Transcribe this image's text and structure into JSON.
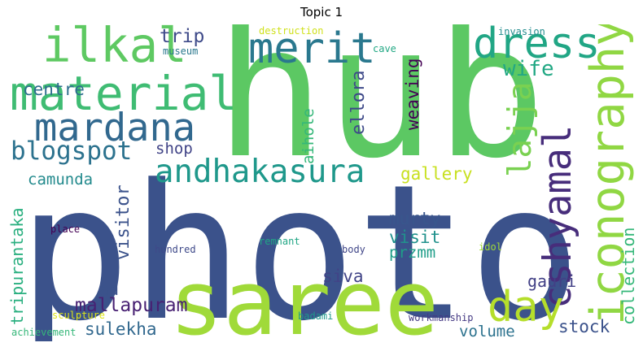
{
  "title": "Topic 1",
  "words": [
    {
      "text": "photo",
      "color": "#3b528b"
    },
    {
      "text": "hub",
      "color": "#5cc863"
    },
    {
      "text": "saree",
      "color": "#a0da39"
    },
    {
      "text": "material",
      "color": "#3fbc73"
    },
    {
      "text": "mardana",
      "color": "#31688e"
    },
    {
      "text": "ilkal",
      "color": "#5ec962"
    },
    {
      "text": "merit",
      "color": "#2a788e"
    },
    {
      "text": "dress",
      "color": "#21a685"
    },
    {
      "text": "iconography",
      "color": "#90d743"
    },
    {
      "text": "cshyamal",
      "color": "#472d7b"
    },
    {
      "text": "andhakasura",
      "color": "#1f988b"
    },
    {
      "text": "day",
      "color": "#b5de2b"
    },
    {
      "text": "lajja",
      "color": "#7ad151"
    },
    {
      "text": "blogspot",
      "color": "#2c728e"
    },
    {
      "text": "trip",
      "color": "#3e4a89"
    },
    {
      "text": "centre",
      "color": "#2e6e8e"
    },
    {
      "text": "wife",
      "color": "#22a884"
    },
    {
      "text": "weaving",
      "color": "#440154"
    },
    {
      "text": "ellora",
      "color": "#3e4989"
    },
    {
      "text": "aihole",
      "color": "#35b779"
    },
    {
      "text": "shop",
      "color": "#414487"
    },
    {
      "text": "gallery",
      "color": "#c8e020"
    },
    {
      "text": "camunda",
      "color": "#238a8d"
    },
    {
      "text": "visitor",
      "color": "#3b528b"
    },
    {
      "text": "tripurantaka",
      "color": "#29af7f"
    },
    {
      "text": "murty",
      "color": "#39568c"
    },
    {
      "text": "visit",
      "color": "#21918c"
    },
    {
      "text": "przmm",
      "color": "#1f9e89"
    },
    {
      "text": "siva",
      "color": "#414487"
    },
    {
      "text": "gauri",
      "color": "#424086"
    },
    {
      "text": "collection",
      "color": "#35b779"
    },
    {
      "text": "ad",
      "color": "#3b528b"
    },
    {
      "text": "mallapuram",
      "color": "#482173"
    },
    {
      "text": "sulekha",
      "color": "#31688e"
    },
    {
      "text": "volume",
      "color": "#2c728e"
    },
    {
      "text": "stock",
      "color": "#3b528b"
    },
    {
      "text": "destruction",
      "color": "#d0e11c"
    },
    {
      "text": "museum",
      "color": "#2a788e"
    },
    {
      "text": "cave",
      "color": "#22a884"
    },
    {
      "text": "invasion",
      "color": "#228c8d"
    },
    {
      "text": "place",
      "color": "#440154"
    },
    {
      "text": "hundred",
      "color": "#3e4989"
    },
    {
      "text": "remnant",
      "color": "#21a685"
    },
    {
      "text": "body",
      "color": "#404688"
    },
    {
      "text": "idol",
      "color": "#a0da39"
    },
    {
      "text": "sculpture",
      "color": "#dde318"
    },
    {
      "text": "badami",
      "color": "#1f988b"
    },
    {
      "text": "workmanship",
      "color": "#443983"
    },
    {
      "text": "achievement",
      "color": "#35b779"
    }
  ]
}
